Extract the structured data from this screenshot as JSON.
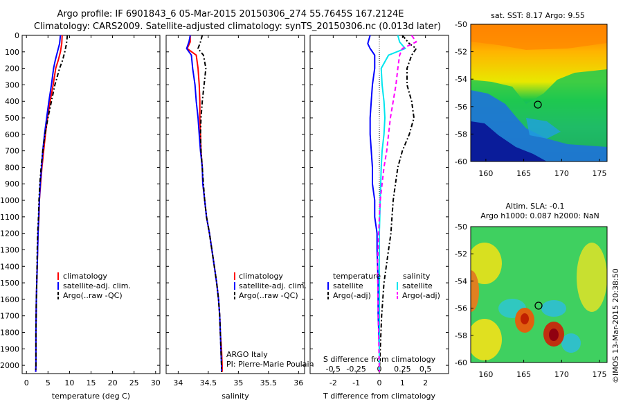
{
  "header": {
    "title_line1": "Argo profile: IF 6901843_6 05-Mar-2015 20150306_274 55.7645S 167.2124E",
    "title_line2": "Climatology: CARS2009. Satellite-adjusted climatology: synTS_20150306.nc (0.013d later)"
  },
  "colors": {
    "climatology": "#ff0000",
    "satellite": "#0000ff",
    "argo": "#000000",
    "satellite_salinity": "#00e5ee",
    "argo_salinity": "#ff00ff"
  },
  "chart_data": [
    {
      "id": "temperature",
      "type": "line",
      "xlabel": "temperature (deg C)",
      "ylabel": "",
      "xlim": [
        -1,
        31
      ],
      "ylim": [
        2050,
        0
      ],
      "xticks": [
        0,
        5,
        10,
        15,
        20,
        25,
        30
      ],
      "yticks": [
        0,
        100,
        200,
        300,
        400,
        500,
        600,
        700,
        800,
        900,
        1000,
        1100,
        1200,
        1300,
        1400,
        1500,
        1600,
        1700,
        1800,
        1900,
        2000
      ],
      "legend": [
        "climatology",
        "satellite-adj. clim.",
        "Argo(..raw -QC)"
      ],
      "legend_position": "lower-right",
      "series": [
        {
          "name": "climatology",
          "color": "#ff0000",
          "dash": "",
          "x": [
            8.3,
            8.2,
            7.9,
            7.4,
            6.8,
            6.2,
            5.5,
            4.9,
            4.4,
            4.0,
            3.6,
            3.3,
            3.0,
            2.9,
            2.7,
            2.6,
            2.5,
            2.4,
            2.3,
            2.2,
            2.2,
            2.15
          ],
          "y": [
            0,
            50,
            100,
            150,
            200,
            300,
            400,
            500,
            600,
            700,
            800,
            900,
            1000,
            1100,
            1200,
            1300,
            1400,
            1500,
            1600,
            1800,
            2000,
            2040
          ]
        },
        {
          "name": "satellite-adj. clim.",
          "color": "#0000ff",
          "dash": "",
          "x": [
            7.9,
            7.7,
            7.2,
            6.7,
            6.3,
            5.8,
            5.2,
            4.7,
            4.2,
            3.8,
            3.5,
            3.2,
            3.0,
            2.85,
            2.7,
            2.6,
            2.5,
            2.4,
            2.3,
            2.2,
            2.2,
            2.15
          ],
          "y": [
            0,
            50,
            100,
            150,
            200,
            300,
            400,
            500,
            600,
            700,
            800,
            900,
            1000,
            1100,
            1200,
            1300,
            1400,
            1500,
            1600,
            1800,
            2000,
            2040
          ]
        },
        {
          "name": "Argo(..raw -QC)",
          "color": "#000000",
          "dash": "6,3,2,3",
          "x": [
            9.5,
            9.3,
            8.9,
            8.4,
            7.7,
            6.6,
            5.8,
            5.0,
            4.3,
            3.8,
            3.4,
            3.1,
            2.9,
            2.8,
            2.6,
            2.5,
            2.45,
            2.4,
            2.3,
            2.2,
            2.2,
            2.15
          ],
          "y": [
            0,
            50,
            100,
            150,
            200,
            300,
            400,
            500,
            600,
            700,
            800,
            900,
            1000,
            1100,
            1200,
            1300,
            1400,
            1500,
            1600,
            1800,
            2000,
            2040
          ]
        }
      ]
    },
    {
      "id": "salinity",
      "type": "line",
      "xlabel": "salinity",
      "ylabel": "",
      "xlim": [
        33.8,
        36.1
      ],
      "ylim": [
        2050,
        0
      ],
      "xticks": [
        34,
        34.5,
        35,
        35.5,
        36
      ],
      "xticklabels": [
        "34",
        "34.5",
        "35",
        "35.5",
        "36"
      ],
      "legend": [
        "climatology",
        "satellite-adj. clim.",
        "Argo(..raw -QC)"
      ],
      "legend_position": "lower-right",
      "annotations": [
        "ARGO Italy",
        "PI: Pierre-Marie Poulain"
      ],
      "series": [
        {
          "name": "climatology",
          "color": "#ff0000",
          "dash": "",
          "x": [
            34.2,
            34.2,
            34.15,
            34.3,
            34.33,
            34.35,
            34.36,
            34.36,
            34.37,
            34.38,
            34.4,
            34.41,
            34.44,
            34.47,
            34.52,
            34.56,
            34.6,
            34.64,
            34.67,
            34.69,
            34.7,
            34.72,
            34.73,
            34.73
          ],
          "y": [
            0,
            40,
            80,
            120,
            200,
            300,
            400,
            500,
            600,
            700,
            800,
            900,
            1000,
            1100,
            1200,
            1300,
            1400,
            1500,
            1600,
            1700,
            1800,
            1900,
            2000,
            2040
          ]
        },
        {
          "name": "satellite-adj. clim.",
          "color": "#0000ff",
          "dash": "",
          "x": [
            34.2,
            34.18,
            34.14,
            34.22,
            34.24,
            34.28,
            34.3,
            34.33,
            34.35,
            34.37,
            34.4,
            34.41,
            34.44,
            34.47,
            34.52,
            34.56,
            34.6,
            34.64,
            34.67,
            34.69,
            34.7,
            34.71,
            34.72,
            34.72
          ],
          "y": [
            0,
            40,
            80,
            120,
            200,
            300,
            400,
            500,
            600,
            700,
            800,
            900,
            1000,
            1100,
            1200,
            1300,
            1400,
            1500,
            1600,
            1700,
            1800,
            1900,
            2000,
            2040
          ]
        },
        {
          "name": "Argo(..raw -QC)",
          "color": "#000000",
          "dash": "6,3,2,3",
          "x": [
            34.4,
            34.37,
            34.33,
            34.42,
            34.46,
            34.43,
            34.4,
            34.38,
            34.37,
            34.38,
            34.4,
            34.42,
            34.44,
            34.47,
            34.52,
            34.56,
            34.6,
            34.64,
            34.67,
            34.69,
            34.7,
            34.71,
            34.72,
            34.72
          ],
          "y": [
            0,
            40,
            80,
            120,
            200,
            300,
            400,
            500,
            600,
            700,
            800,
            900,
            1000,
            1100,
            1200,
            1300,
            1400,
            1500,
            1600,
            1700,
            1800,
            1900,
            2000,
            2040
          ]
        }
      ]
    },
    {
      "id": "difference",
      "type": "line",
      "xlabel": "T difference from climatology",
      "xlabel_top": "S difference from climatology",
      "ylabel": "",
      "xlim": [
        -3,
        3
      ],
      "ylim": [
        2050,
        0
      ],
      "xticks": [
        -2,
        -1,
        0,
        1,
        2
      ],
      "xticks_top": [
        -0.5,
        -0.25,
        0,
        0.25,
        0.5
      ],
      "xticks_top_labels": [
        "-0.5",
        "-0.25",
        "0",
        "0.25",
        "0.5"
      ],
      "zero_line": true,
      "legend_temperature": {
        "heading": "temperature",
        "items": [
          "satellite",
          "Argo(-adj)"
        ]
      },
      "legend_salinity": {
        "heading": "salinity",
        "items": [
          "satellite",
          "Argo(-adj)"
        ]
      },
      "legend_position": "lower-center",
      "series": [
        {
          "name": "temperature satellite",
          "color": "#0000ff",
          "dash": "",
          "x": [
            -0.4,
            -0.5,
            -0.4,
            -0.2,
            -0.2,
            -0.3,
            -0.35,
            -0.4,
            -0.4,
            -0.3,
            -0.3,
            -0.2,
            -0.2,
            -0.1,
            -0.1,
            -0.05,
            -0.05,
            0,
            0
          ],
          "y": [
            0,
            50,
            80,
            120,
            200,
            300,
            400,
            500,
            600,
            800,
            900,
            1000,
            1100,
            1200,
            1300,
            1500,
            1700,
            1900,
            2040
          ]
        },
        {
          "name": "temperature Argo(-adj)",
          "color": "#000000",
          "dash": "6,3,2,3",
          "x": [
            1.0,
            1.3,
            1.6,
            1.4,
            1.2,
            1.2,
            1.4,
            1.5,
            1.3,
            1.0,
            0.8,
            0.7,
            0.6,
            0.55,
            0.5,
            0.4,
            0.3,
            0.2,
            0.1,
            0
          ],
          "y": [
            0,
            50,
            80,
            120,
            200,
            300,
            400,
            500,
            600,
            700,
            800,
            900,
            1000,
            1100,
            1200,
            1300,
            1400,
            1500,
            1700,
            2040
          ]
        },
        {
          "name": "salinity satellite",
          "color": "#00e5ee",
          "dash": "",
          "x": [
            0.2,
            0.22,
            0.28,
            0.1,
            0.02,
            0.03,
            0.05,
            0.06,
            0.05,
            0.03,
            0.02,
            0.01,
            0,
            0
          ],
          "y": [
            0,
            40,
            80,
            120,
            200,
            300,
            400,
            500,
            600,
            700,
            800,
            1000,
            1200,
            2040
          ]
        },
        {
          "name": "salinity Argo(-adj)",
          "color": "#ff00ff",
          "dash": "6,4",
          "x": [
            0.35,
            0.4,
            0.25,
            0.22,
            0.2,
            0.18,
            0.15,
            0.12,
            0.1,
            0.08,
            0.05,
            0.03,
            0.01,
            0,
            -0.02,
            0
          ],
          "y": [
            0,
            40,
            80,
            120,
            200,
            300,
            400,
            500,
            600,
            700,
            800,
            900,
            1000,
            1100,
            1400,
            2040
          ]
        }
      ]
    },
    {
      "id": "sst-map",
      "type": "heatmap",
      "title": "sat. SST: 8.17 Argo: 9.55",
      "xlim": [
        158,
        176
      ],
      "ylim": [
        -60,
        -50
      ],
      "xticks": [
        160,
        165,
        170,
        175
      ],
      "yticks": [
        -50,
        -52,
        -54,
        -56,
        -58,
        -60
      ],
      "marker": {
        "lon": 167.2124,
        "lat": -55.7645
      }
    },
    {
      "id": "sla-map",
      "type": "heatmap",
      "title_line1": "Altim. SLA: -0.1",
      "title_line2": "Argo h1000: 0.087 h2000: NaN",
      "xlim": [
        158,
        176
      ],
      "ylim": [
        -60,
        -50
      ],
      "xticks": [
        160,
        165,
        170,
        175
      ],
      "yticks": [
        -50,
        -52,
        -54,
        -56,
        -58,
        -60
      ],
      "marker": {
        "lon": 167.2124,
        "lat": -55.7645
      }
    }
  ],
  "credit": "©IMOS 13-Mar-2015 20:38:50"
}
